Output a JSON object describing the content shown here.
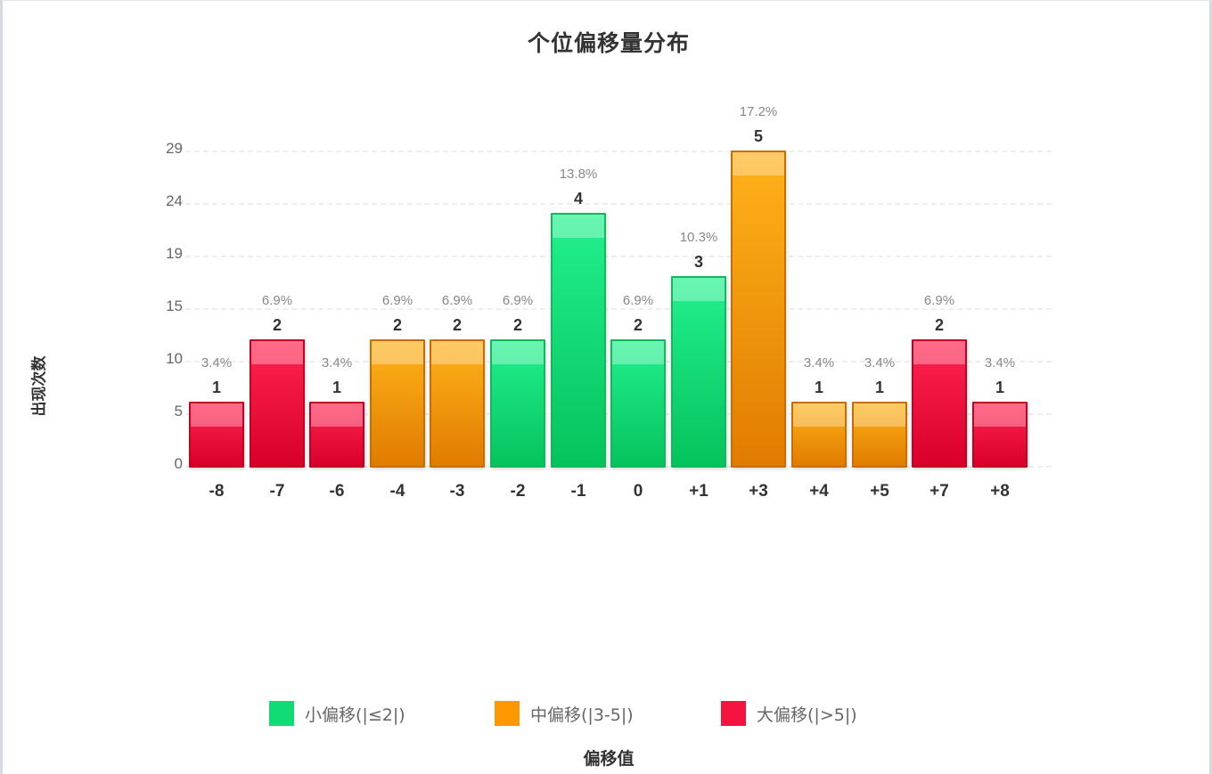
{
  "chart_data": {
    "type": "bar",
    "title": "个位偏移量分布",
    "xlabel": "偏移值",
    "ylabel": "出现次数",
    "categories": [
      "-8",
      "-7",
      "-6",
      "-4",
      "-3",
      "-2",
      "-1",
      "0",
      "+1",
      "+3",
      "+4",
      "+5",
      "+7",
      "+8"
    ],
    "values": [
      1,
      2,
      1,
      2,
      2,
      2,
      4,
      2,
      3,
      5,
      1,
      1,
      2,
      1
    ],
    "percentages": [
      "3.4%",
      "6.9%",
      "3.4%",
      "6.9%",
      "6.9%",
      "6.9%",
      "13.8%",
      "6.9%",
      "10.3%",
      "17.2%",
      "3.4%",
      "3.4%",
      "6.9%",
      "3.4%"
    ],
    "groups": [
      "large",
      "large",
      "large",
      "mid",
      "mid",
      "small",
      "small",
      "small",
      "small",
      "mid",
      "mid",
      "mid",
      "large",
      "large"
    ],
    "y_ticks": [
      "0",
      "5",
      "10",
      "15",
      "19",
      "24",
      "29"
    ],
    "grid": true,
    "legend_position": "bottom",
    "legend": [
      {
        "key": "small",
        "label": "小偏移(|≤2|)",
        "color": "#0fdc74"
      },
      {
        "key": "mid",
        "label": "中偏移(|3-5|)",
        "color": "#ff9800"
      },
      {
        "key": "large",
        "label": "大偏移(|>5|)",
        "color": "#f5133f"
      }
    ]
  },
  "labels": {
    "title": "个位偏移量分布",
    "xlabel": "偏移值",
    "ylabel": "出现次数"
  }
}
